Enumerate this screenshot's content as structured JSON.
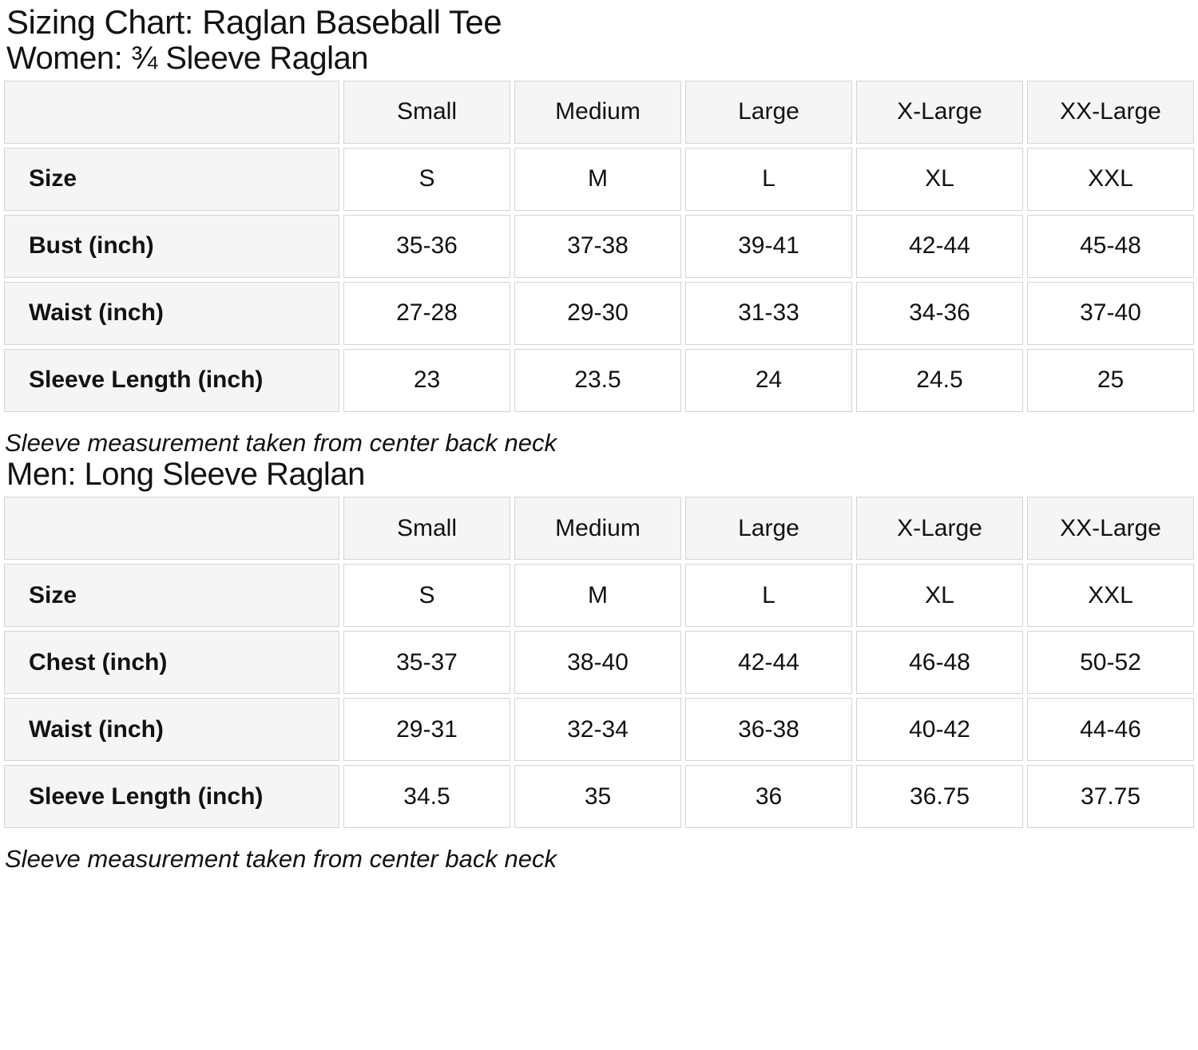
{
  "page": {
    "title": "Sizing Chart: Raglan Baseball Tee"
  },
  "colors": {
    "page_bg": "#ffffff",
    "header_cell_bg": "#f5f5f5",
    "cell_border": "#d4d4d4",
    "text": "#111213"
  },
  "women_section": {
    "heading": "Women: ¾ Sleeve Raglan",
    "table": {
      "column_headers": [
        "",
        "Small",
        "Medium",
        "Large",
        "X-Large",
        "XX-Large"
      ],
      "rows": [
        {
          "label": "Size",
          "values": [
            "S",
            "M",
            "L",
            "XL",
            "XXL"
          ]
        },
        {
          "label": "Bust (inch)",
          "values": [
            "35-36",
            "37-38",
            "39-41",
            "42-44",
            "45-48"
          ]
        },
        {
          "label": "Waist (inch)",
          "values": [
            "27-28",
            "29-30",
            "31-33",
            "34-36",
            "37-40"
          ]
        },
        {
          "label": "Sleeve Length (inch)",
          "values": [
            "23",
            "23.5",
            "24",
            "24.5",
            "25"
          ]
        }
      ]
    },
    "note": "Sleeve measurement taken from center back neck"
  },
  "men_section": {
    "heading": "Men: Long Sleeve Raglan",
    "table": {
      "column_headers": [
        "",
        "Small",
        "Medium",
        "Large",
        "X-Large",
        "XX-Large"
      ],
      "rows": [
        {
          "label": "Size",
          "values": [
            "S",
            "M",
            "L",
            "XL",
            "XXL"
          ]
        },
        {
          "label": "Chest (inch)",
          "values": [
            "35-37",
            "38-40",
            "42-44",
            "46-48",
            "50-52"
          ]
        },
        {
          "label": "Waist (inch)",
          "values": [
            "29-31",
            "32-34",
            "36-38",
            "40-42",
            "44-46"
          ]
        },
        {
          "label": "Sleeve Length (inch)",
          "values": [
            "34.5",
            "35",
            "36",
            "36.75",
            "37.75"
          ]
        }
      ]
    },
    "note": "Sleeve measurement taken from center back neck"
  }
}
